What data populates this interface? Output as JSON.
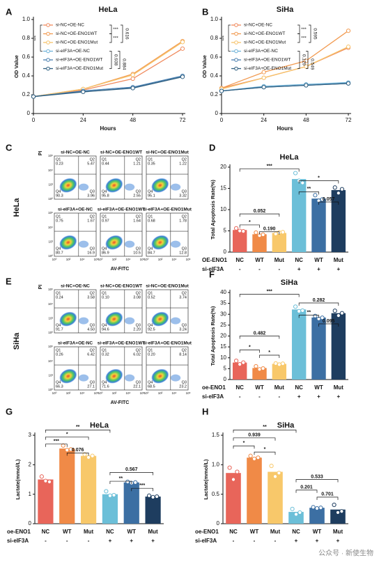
{
  "chart_data": [
    {
      "type": "line",
      "letter": "A",
      "title": "HeLa",
      "xlabel": "Hours",
      "ylabel": "OD Value",
      "x": [
        0,
        24,
        48,
        72
      ],
      "xlim": [
        0,
        72
      ],
      "xticks": [
        0,
        24,
        48,
        72
      ],
      "ylim": [
        0,
        1
      ],
      "yticks": [
        0,
        0.2,
        0.4,
        0.6,
        0.8,
        {
          "value": 1,
          "label": "1.0"
        }
      ],
      "series": [
        {
          "name": "si-NC+OE-NC",
          "color": "#f08a5d",
          "values": [
            0.18,
            0.25,
            0.37,
            0.69
          ]
        },
        {
          "name": "si-NC+OE-ENO1WT",
          "color": "#f29b52",
          "values": [
            0.18,
            0.26,
            0.42,
            0.77
          ]
        },
        {
          "name": "si-NC+OE-ENO1Mut",
          "color": "#f6c36b",
          "values": [
            0.18,
            0.26,
            0.41,
            0.76
          ]
        },
        {
          "name": "si-eIF3A+OE-NC",
          "color": "#6fb3d9",
          "values": [
            0.18,
            0.24,
            0.28,
            0.4
          ]
        },
        {
          "name": "si-eIF3A+OE-ENO1WT",
          "color": "#4a7fb0",
          "values": [
            0.18,
            0.24,
            0.28,
            0.4
          ]
        },
        {
          "name": "si-eIF3A+OE-ENO1Mut",
          "color": "#2f5f80",
          "values": [
            0.18,
            0.23,
            0.27,
            0.39
          ]
        }
      ],
      "annotations": [
        "***",
        "***",
        "***",
        "0.616",
        "0.938",
        "0.884"
      ]
    },
    {
      "type": "line",
      "letter": "B",
      "title": "SiHa",
      "xlabel": "Hours",
      "ylabel": "OD Value",
      "x": [
        0,
        24,
        48,
        72
      ],
      "xlim": [
        0,
        72
      ],
      "xticks": [
        0,
        24,
        48,
        72
      ],
      "ylim": [
        0,
        1
      ],
      "yticks": [
        0,
        0.2,
        0.4,
        0.6,
        0.8,
        {
          "value": 1,
          "label": "1.0"
        }
      ],
      "series": [
        {
          "name": "si-NC+OE-NC",
          "color": "#f08a5d",
          "values": [
            0.27,
            0.38,
            0.5,
            0.7
          ]
        },
        {
          "name": "si-NC+OE-ENO1WT",
          "color": "#f29b52",
          "values": [
            0.27,
            0.44,
            0.56,
            0.88
          ]
        },
        {
          "name": "si-NC+OE-ENO1Mut",
          "color": "#f6c36b",
          "values": [
            0.26,
            0.38,
            0.5,
            0.71
          ]
        },
        {
          "name": "si-eIF3A+OE-NC",
          "color": "#6fb3d9",
          "values": [
            0.24,
            0.29,
            0.31,
            0.33
          ]
        },
        {
          "name": "si-eIF3A+OE-ENO1WT",
          "color": "#4a7fb0",
          "values": [
            0.24,
            0.28,
            0.3,
            0.32
          ]
        },
        {
          "name": "si-eIF3A+OE-ENO1Mut",
          "color": "#2f5f80",
          "values": [
            0.24,
            0.28,
            0.3,
            0.32
          ]
        }
      ],
      "annotations": [
        "***",
        "***",
        "***",
        "0.595",
        "0.129",
        "0.549"
      ]
    },
    {
      "type": "bar",
      "letter": "D",
      "title": "HeLa",
      "ylabel": "Total Apoptosis Rate(%)",
      "category_label": "OE-ENO1",
      "categories": [
        "NC",
        "WT",
        "Mut",
        "NC",
        "WT",
        "Mut"
      ],
      "group_label": "si-eIF3A",
      "groups": [
        "-",
        "-",
        "-",
        "+",
        "+",
        "+"
      ],
      "values": [
        5.2,
        4.2,
        4.5,
        17.2,
        12.6,
        14.6
      ],
      "points": [
        [
          5.6,
          5.0,
          4.9
        ],
        [
          4.6,
          3.9,
          4.1
        ],
        [
          4.3,
          4.6,
          4.7
        ],
        [
          18.6,
          16.8,
          16.3
        ],
        [
          13.4,
          12.1,
          12.4
        ],
        [
          15.2,
          13.9,
          14.8
        ]
      ],
      "colors": [
        "#e8655a",
        "#f08a47",
        "#f8c86a",
        "#6cbfd8",
        "#3c6fa3",
        "#1e3d5f"
      ],
      "ylim": [
        0,
        20
      ],
      "yticks": [
        0,
        5,
        10,
        15,
        20
      ],
      "annotations": [
        "***",
        "*",
        "**",
        "0.057",
        "0.052",
        "*",
        "0.190"
      ]
    },
    {
      "type": "bar",
      "letter": "F",
      "title": "SiHa",
      "ylabel": "Total Apoptosis Rate(%)",
      "category_label": "oe-ENO1",
      "categories": [
        "NC",
        "WT",
        "Mut",
        "NC",
        "WT",
        "Mut"
      ],
      "group_label": "si-eIF3A",
      "groups": [
        "-",
        "-",
        "-",
        "+",
        "+",
        "+"
      ],
      "values": [
        7.8,
        5.3,
        7.2,
        32.2,
        28.5,
        30.5
      ],
      "points": [
        [
          8.6,
          7.0,
          7.8
        ],
        [
          6.1,
          4.7,
          5.1
        ],
        [
          7.4,
          6.9,
          7.3
        ],
        [
          33.5,
          31.4,
          31.7
        ],
        [
          29.2,
          27.9,
          28.4
        ],
        [
          31.6,
          29.4,
          30.5
        ]
      ],
      "colors": [
        "#e8655a",
        "#f08a47",
        "#f8c86a",
        "#6cbfd8",
        "#3c6fa3",
        "#1e3d5f"
      ],
      "ylim": [
        0,
        40
      ],
      "yticks": [
        0,
        5,
        10,
        15,
        20,
        25,
        30,
        35,
        40
      ],
      "annotations": [
        "***",
        "0.282",
        "**",
        "0.095",
        "0.482",
        "*",
        "*"
      ]
    },
    {
      "type": "bar",
      "letter": "G",
      "title": "HeLa",
      "ylabel": "Lactate(mmol/L)",
      "category_label": "oe-ENO1",
      "categories": [
        "NC",
        "WT",
        "Mut",
        "NC",
        "WT",
        "Mut"
      ],
      "group_label": "si-eIF3A",
      "groups": [
        "-",
        "-",
        "-",
        "+",
        "+",
        "+"
      ],
      "values": [
        1.5,
        2.55,
        2.3,
        1.0,
        1.4,
        0.92
      ],
      "points": [
        [
          1.6,
          1.45,
          1.42
        ],
        [
          2.65,
          2.5,
          2.52
        ],
        [
          2.35,
          2.25,
          2.3
        ],
        [
          1.1,
          0.95,
          0.97
        ],
        [
          1.42,
          1.38,
          1.4
        ],
        [
          0.95,
          0.9,
          0.92
        ]
      ],
      "colors": [
        "#e8655a",
        "#f08a47",
        "#f8c86a",
        "#6cbfd8",
        "#3c6fa3",
        "#1e3d5f"
      ],
      "ylim": [
        0,
        3
      ],
      "yticks": [
        0,
        1,
        2,
        3
      ],
      "annotations": [
        "**",
        "*",
        "***",
        "0.076",
        "0.567",
        "**",
        "***"
      ]
    },
    {
      "type": "bar",
      "letter": "H",
      "title": "SiHa",
      "ylabel": "Lactate(mmol/L)",
      "category_label": "oe-ENO1",
      "categories": [
        "NC",
        "WT",
        "Mut",
        "NC",
        "WT",
        "Mut"
      ],
      "group_label": "si-eIF3A",
      "groups": [
        "-",
        "-",
        "-",
        "+",
        "+",
        "+"
      ],
      "values": [
        0.86,
        1.12,
        0.88,
        0.2,
        0.27,
        0.24
      ],
      "points": [
        [
          0.95,
          0.75,
          0.88
        ],
        [
          1.15,
          1.1,
          1.12
        ],
        [
          0.98,
          0.8,
          0.86
        ],
        [
          0.25,
          0.16,
          0.19
        ],
        [
          0.28,
          0.26,
          0.27
        ],
        [
          0.32,
          0.19,
          0.21
        ]
      ],
      "colors": [
        "#e8655a",
        "#f08a47",
        "#f8c86a",
        "#6cbfd8",
        "#3c6fa3",
        "#1e3d5f"
      ],
      "ylim": [
        0,
        1.5
      ],
      "yticks": [
        0,
        0.5,
        {
          "value": 1,
          "label": "1.0"
        },
        1.5
      ],
      "annotations": [
        "**",
        "0.939",
        "*",
        "*",
        "0.533",
        "0.201",
        "0.701"
      ]
    }
  ],
  "flow": [
    {
      "letter": "C",
      "cell_line": "HeLa",
      "ylabel": "PI",
      "xlabel": "AV-FITC",
      "ticks": [
        "10⁰",
        "10²",
        "10⁴",
        "10⁶"
      ],
      "plots": [
        {
          "title": "si-NC+OE-NC",
          "quadrants": [
            {
              "name": "Q1",
              "value": "0.23"
            },
            {
              "name": "Q2",
              "value": "5.47"
            },
            {
              "name": "Q3",
              "value": "3.96"
            },
            {
              "name": "Q4",
              "value": "90.3"
            }
          ]
        },
        {
          "title": "si-NC+OE-ENO1WT",
          "quadrants": [
            {
              "name": "Q1",
              "value": "0.44"
            },
            {
              "name": "Q2",
              "value": "1.21"
            },
            {
              "name": "Q3",
              "value": "2.55"
            },
            {
              "name": "Q4",
              "value": "95.8"
            }
          ]
        },
        {
          "title": "si-NC+OE-ENO1Mut",
          "quadrants": [
            {
              "name": "Q1",
              "value": "0.35"
            },
            {
              "name": "Q2",
              "value": "1.22"
            },
            {
              "name": "Q3",
              "value": "3.32"
            },
            {
              "name": "Q4",
              "value": "95.1"
            }
          ]
        },
        {
          "title": "si-eIF3A+OE-NC",
          "quadrants": [
            {
              "name": "Q1",
              "value": "0.75"
            },
            {
              "name": "Q2",
              "value": "1.67"
            },
            {
              "name": "Q3",
              "value": "16.9"
            },
            {
              "name": "Q4",
              "value": "80.7"
            }
          ]
        },
        {
          "title": "si-eIF3A+OE-ENO1WT",
          "quadrants": [
            {
              "name": "Q1",
              "value": "0.97"
            },
            {
              "name": "Q2",
              "value": "1.64"
            },
            {
              "name": "Q3",
              "value": "10.5"
            },
            {
              "name": "Q4",
              "value": "86.9"
            }
          ]
        },
        {
          "title": "si-eIF3A+OE-ENO1Mut",
          "quadrants": [
            {
              "name": "Q1",
              "value": "0.68"
            },
            {
              "name": "Q2",
              "value": "1.78"
            },
            {
              "name": "Q3",
              "value": "12.8"
            },
            {
              "name": "Q4",
              "value": "84.7"
            }
          ]
        }
      ]
    },
    {
      "letter": "E",
      "cell_line": "SiHa",
      "ylabel": "PI",
      "xlabel": "AV-FITC",
      "ticks": [
        "10⁰",
        "10²",
        "10⁴",
        "10⁶"
      ],
      "plots": [
        {
          "title": "si-NC+OE-NC",
          "quadrants": [
            {
              "name": "Q1",
              "value": "0.24"
            },
            {
              "name": "Q2",
              "value": "3.58"
            },
            {
              "name": "Q3",
              "value": "4.50"
            },
            {
              "name": "Q4",
              "value": "91.7"
            }
          ]
        },
        {
          "title": "si-NC+OE-ENO1WT",
          "quadrants": [
            {
              "name": "Q1",
              "value": "0.10"
            },
            {
              "name": "Q2",
              "value": "3.08"
            },
            {
              "name": "Q3",
              "value": "2.20"
            },
            {
              "name": "Q4",
              "value": "94.6"
            }
          ]
        },
        {
          "title": "si-NC+OE-ENO1Mut",
          "quadrants": [
            {
              "name": "Q1",
              "value": "0.52"
            },
            {
              "name": "Q2",
              "value": "3.74"
            },
            {
              "name": "Q3",
              "value": "3.24"
            },
            {
              "name": "Q4",
              "value": "92.5"
            }
          ]
        },
        {
          "title": "si-eIF3A+OE-NC",
          "quadrants": [
            {
              "name": "Q1",
              "value": "0.26"
            },
            {
              "name": "Q2",
              "value": "6.42"
            },
            {
              "name": "Q3",
              "value": "27.1"
            },
            {
              "name": "Q4",
              "value": "66.3"
            }
          ]
        },
        {
          "title": "si-eIF3A+OE-ENO1WT",
          "quadrants": [
            {
              "name": "Q1",
              "value": "0.32"
            },
            {
              "name": "Q2",
              "value": "6.02"
            },
            {
              "name": "Q3",
              "value": "22.1"
            },
            {
              "name": "Q4",
              "value": "71.6"
            }
          ]
        },
        {
          "title": "si-eIF3A+OE-ENO1Mut",
          "quadrants": [
            {
              "name": "Q1",
              "value": "0.20"
            },
            {
              "name": "Q2",
              "value": "8.14"
            },
            {
              "name": "Q3",
              "value": "23.2"
            },
            {
              "name": "Q4",
              "value": "68.5"
            }
          ]
        }
      ]
    }
  ],
  "watermark": "公众号 · 新使生物"
}
